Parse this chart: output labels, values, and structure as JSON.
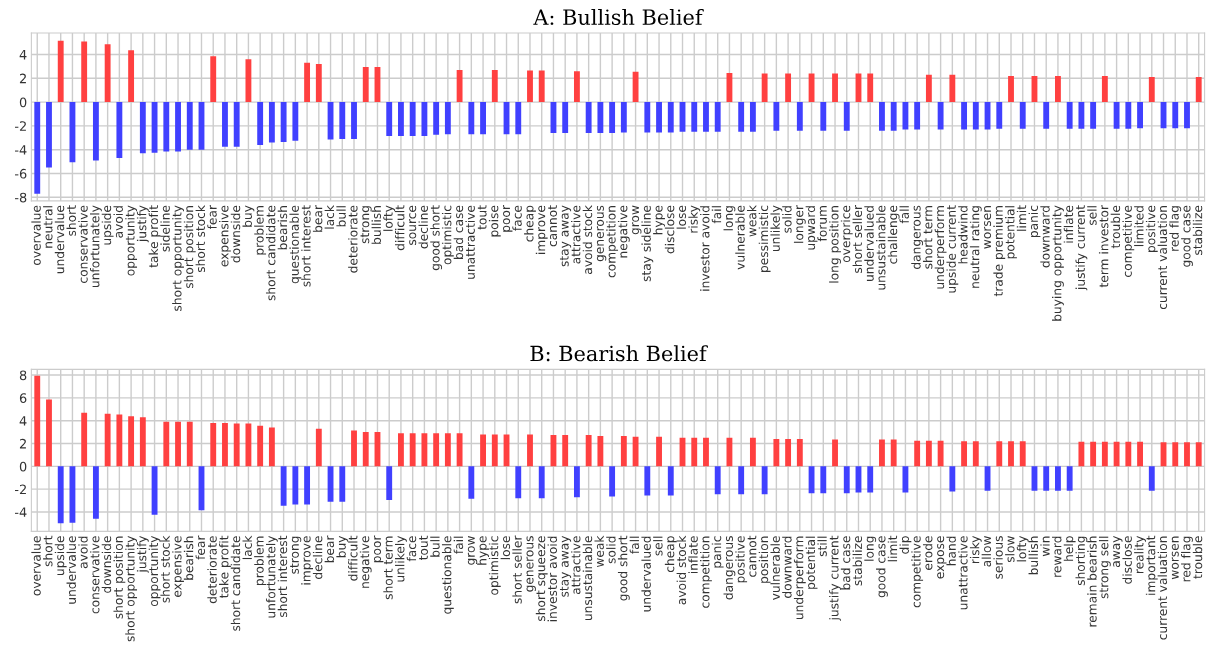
{
  "chart_data": [
    {
      "type": "bar",
      "title": "A: Bullish Belief",
      "grid": true,
      "ylim": [
        -8.3,
        5.8
      ],
      "yticks": [
        -8,
        -6,
        -4,
        -2,
        0,
        2,
        4
      ],
      "categories": [
        "overvalue",
        "neutral",
        "undervalue",
        "short",
        "conservative",
        "unfortunately",
        "upside",
        "avoid",
        "opportunity",
        "justify",
        "take profit",
        "sideline",
        "short opportunity",
        "short position",
        "short stock",
        "fear",
        "expensive",
        "downside",
        "buy",
        "problem",
        "short candidate",
        "bearish",
        "questionable",
        "short interest",
        "bear",
        "lack",
        "bull",
        "deteriorate",
        "strong",
        "bullish",
        "lofty",
        "difficult",
        "source",
        "decline",
        "good short",
        "optimistic",
        "bad case",
        "unattractive",
        "tout",
        "poise",
        "poor",
        "face",
        "cheap",
        "improve",
        "cannot",
        "stay away",
        "attractive",
        "avoid stock",
        "generous",
        "competition",
        "negative",
        "grow",
        "stay sideline",
        "hype",
        "disclose",
        "lose",
        "risky",
        "investor avoid",
        "fail",
        "long",
        "vulnerable",
        "weak",
        "pessimistic",
        "unlikely",
        "solid",
        "longer",
        "upward",
        "forum",
        "long position",
        "overprice",
        "short seller",
        "undervalued",
        "unsustainable",
        "challenge",
        "fall",
        "dangerous",
        "short term",
        "underperform",
        "upside current",
        "headwind",
        "neutral rating",
        "worsen",
        "trade premium",
        "potential",
        "limit",
        "panic",
        "downward",
        "buying opportunity",
        "inflate",
        "justify current",
        "sell",
        "term investor",
        "trouble",
        "competitive",
        "limited",
        "positive",
        "current valuation",
        "red flag",
        "good case",
        "stabilize"
      ],
      "values": [
        -7.7,
        -5.5,
        5.15,
        -5.05,
        5.1,
        -4.9,
        4.85,
        -4.7,
        4.35,
        -4.3,
        -4.25,
        -4.15,
        -4.15,
        -4.0,
        -4.0,
        3.85,
        -3.75,
        -3.75,
        3.6,
        -3.6,
        -3.4,
        -3.35,
        -3.25,
        3.3,
        3.2,
        -3.15,
        -3.1,
        -3.1,
        2.95,
        2.95,
        -2.85,
        -2.85,
        -2.85,
        -2.85,
        -2.75,
        -2.7,
        2.7,
        -2.7,
        -2.7,
        2.7,
        -2.7,
        -2.7,
        2.65,
        2.65,
        -2.6,
        -2.6,
        2.6,
        -2.6,
        -2.6,
        -2.6,
        -2.55,
        2.55,
        -2.55,
        -2.55,
        -2.55,
        -2.5,
        -2.5,
        -2.5,
        -2.5,
        2.45,
        -2.5,
        -2.5,
        2.4,
        -2.4,
        2.4,
        -2.4,
        2.4,
        -2.4,
        2.4,
        -2.4,
        2.4,
        2.4,
        -2.4,
        -2.4,
        -2.3,
        -2.3,
        2.3,
        -2.3,
        2.3,
        -2.3,
        -2.3,
        -2.3,
        -2.25,
        2.2,
        -2.25,
        2.2,
        -2.25,
        2.2,
        -2.25,
        -2.25,
        -2.25,
        2.2,
        -2.25,
        -2.25,
        -2.2,
        2.1,
        -2.2,
        -2.2,
        -2.2,
        2.1
      ],
      "colors": [
        "#4040ff",
        "#4040ff",
        "#ff4040",
        "#4040ff",
        "#ff4040",
        "#4040ff",
        "#ff4040",
        "#4040ff",
        "#ff4040",
        "#4040ff",
        "#4040ff",
        "#4040ff",
        "#4040ff",
        "#4040ff",
        "#4040ff",
        "#ff4040",
        "#4040ff",
        "#4040ff",
        "#ff4040",
        "#4040ff",
        "#4040ff",
        "#4040ff",
        "#4040ff",
        "#ff4040",
        "#ff4040",
        "#4040ff",
        "#4040ff",
        "#4040ff",
        "#ff4040",
        "#ff4040",
        "#4040ff",
        "#4040ff",
        "#4040ff",
        "#4040ff",
        "#4040ff",
        "#4040ff",
        "#ff4040",
        "#4040ff",
        "#4040ff",
        "#ff4040",
        "#4040ff",
        "#4040ff",
        "#ff4040",
        "#ff4040",
        "#4040ff",
        "#4040ff",
        "#ff4040",
        "#4040ff",
        "#4040ff",
        "#4040ff",
        "#4040ff",
        "#ff4040",
        "#4040ff",
        "#4040ff",
        "#4040ff",
        "#4040ff",
        "#4040ff",
        "#4040ff",
        "#4040ff",
        "#ff4040",
        "#4040ff",
        "#4040ff",
        "#ff4040",
        "#4040ff",
        "#ff4040",
        "#4040ff",
        "#ff4040",
        "#4040ff",
        "#ff4040",
        "#4040ff",
        "#ff4040",
        "#ff4040",
        "#4040ff",
        "#4040ff",
        "#4040ff",
        "#4040ff",
        "#ff4040",
        "#4040ff",
        "#ff4040",
        "#4040ff",
        "#4040ff",
        "#4040ff",
        "#4040ff",
        "#ff4040",
        "#4040ff",
        "#ff4040",
        "#4040ff",
        "#ff4040",
        "#4040ff",
        "#4040ff",
        "#4040ff",
        "#ff4040",
        "#4040ff",
        "#4040ff",
        "#4040ff",
        "#ff4040",
        "#4040ff",
        "#4040ff",
        "#4040ff",
        "#ff4040"
      ]
    },
    {
      "type": "bar",
      "title": "B: Bearish Belief",
      "grid": true,
      "ylim": [
        -5.7,
        8.5
      ],
      "yticks": [
        -4,
        -2,
        0,
        2,
        4,
        6,
        8
      ],
      "categories": [
        "overvalue",
        "short",
        "upside",
        "undervalue",
        "avoid",
        "conservative",
        "downside",
        "short position",
        "short opportunity",
        "justify",
        "opportunity",
        "short stock",
        "expensive",
        "bearish",
        "fear",
        "deteriorate",
        "take profit",
        "short candidate",
        "lack",
        "problem",
        "unfortunately",
        "short interest",
        "strong",
        "improve",
        "decline",
        "bear",
        "buy",
        "difficult",
        "negative",
        "poor",
        "short term",
        "unlikely",
        "face",
        "tout",
        "bull",
        "questionable",
        "fail",
        "grow",
        "hype",
        "optimistic",
        "lose",
        "short seller",
        "generous",
        "short squeeze",
        "investor avoid",
        "stay away",
        "attractive",
        "unsustainable",
        "weak",
        "solid",
        "good short",
        "fall",
        "undervalued",
        "sell",
        "cheap",
        "avoid stock",
        "inflate",
        "competition",
        "panic",
        "dangerous",
        "positive",
        "cannot",
        "position",
        "vulnerable",
        "downward",
        "underperform",
        "potential",
        "still",
        "justify current",
        "bad case",
        "stabilize",
        "long",
        "good case",
        "limit",
        "dip",
        "competitive",
        "erode",
        "expose",
        "hand",
        "unattractive",
        "risky",
        "allow",
        "serious",
        "slow",
        "lofty",
        "bullish",
        "win",
        "reward",
        "help",
        "shorting",
        "remain bearish",
        "strong sell",
        "away",
        "disclose",
        "reality",
        "important",
        "current valuation",
        "worsen",
        "red flag",
        "trouble"
      ],
      "values": [
        7.95,
        5.85,
        -5.0,
        -4.95,
        4.7,
        -4.6,
        4.6,
        4.55,
        4.4,
        4.3,
        -4.25,
        3.9,
        3.9,
        3.9,
        -3.85,
        3.8,
        3.8,
        3.75,
        3.75,
        3.55,
        3.4,
        -3.45,
        -3.35,
        -3.35,
        3.3,
        -3.1,
        -3.1,
        3.15,
        3.0,
        3.0,
        -2.95,
        2.9,
        2.9,
        2.9,
        2.9,
        2.9,
        2.9,
        -2.85,
        2.8,
        2.8,
        2.8,
        -2.8,
        2.8,
        -2.8,
        2.75,
        2.75,
        -2.7,
        2.75,
        2.65,
        -2.65,
        2.65,
        2.6,
        -2.55,
        2.6,
        -2.55,
        2.5,
        2.5,
        2.5,
        -2.45,
        2.5,
        -2.45,
        2.5,
        -2.45,
        2.4,
        2.4,
        2.4,
        -2.35,
        -2.35,
        2.35,
        -2.35,
        -2.3,
        -2.3,
        2.35,
        2.35,
        -2.3,
        2.25,
        2.25,
        2.25,
        -2.2,
        2.2,
        2.2,
        -2.15,
        2.2,
        2.2,
        2.2,
        -2.15,
        -2.15,
        -2.15,
        -2.15,
        2.15,
        2.15,
        2.15,
        2.15,
        2.15,
        2.15,
        -2.15,
        2.1,
        2.1,
        2.1,
        2.1
      ],
      "colors": [
        "#ff4040",
        "#ff4040",
        "#4040ff",
        "#4040ff",
        "#ff4040",
        "#4040ff",
        "#ff4040",
        "#ff4040",
        "#ff4040",
        "#ff4040",
        "#4040ff",
        "#ff4040",
        "#ff4040",
        "#ff4040",
        "#4040ff",
        "#ff4040",
        "#ff4040",
        "#ff4040",
        "#ff4040",
        "#ff4040",
        "#ff4040",
        "#4040ff",
        "#4040ff",
        "#4040ff",
        "#ff4040",
        "#4040ff",
        "#4040ff",
        "#ff4040",
        "#ff4040",
        "#ff4040",
        "#4040ff",
        "#ff4040",
        "#ff4040",
        "#ff4040",
        "#ff4040",
        "#ff4040",
        "#ff4040",
        "#4040ff",
        "#ff4040",
        "#ff4040",
        "#ff4040",
        "#4040ff",
        "#ff4040",
        "#4040ff",
        "#ff4040",
        "#ff4040",
        "#4040ff",
        "#ff4040",
        "#ff4040",
        "#4040ff",
        "#ff4040",
        "#ff4040",
        "#4040ff",
        "#ff4040",
        "#4040ff",
        "#ff4040",
        "#ff4040",
        "#ff4040",
        "#4040ff",
        "#ff4040",
        "#4040ff",
        "#ff4040",
        "#4040ff",
        "#ff4040",
        "#ff4040",
        "#ff4040",
        "#4040ff",
        "#4040ff",
        "#ff4040",
        "#4040ff",
        "#4040ff",
        "#4040ff",
        "#ff4040",
        "#ff4040",
        "#4040ff",
        "#ff4040",
        "#ff4040",
        "#ff4040",
        "#4040ff",
        "#ff4040",
        "#ff4040",
        "#4040ff",
        "#ff4040",
        "#ff4040",
        "#ff4040",
        "#4040ff",
        "#4040ff",
        "#4040ff",
        "#4040ff",
        "#ff4040",
        "#ff4040",
        "#ff4040",
        "#ff4040",
        "#ff4040",
        "#ff4040",
        "#4040ff",
        "#ff4040",
        "#ff4040",
        "#ff4040",
        "#ff4040"
      ]
    }
  ]
}
